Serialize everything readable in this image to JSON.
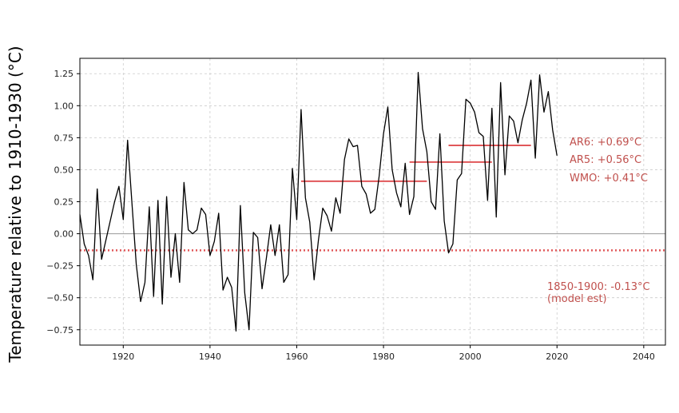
{
  "colors": {
    "series": "#000000",
    "accent": "#e15759",
    "annotation_text": "#c0504d",
    "grid": "#cccccc",
    "zero_line": "#999999"
  },
  "chart_data": {
    "type": "line",
    "title": "",
    "xlabel": "",
    "ylabel": "Temperature relative to 1910-1930 (°C)",
    "xlim": [
      1910,
      2045
    ],
    "ylim": [
      -0.87,
      1.37
    ],
    "x_ticks": [
      1920,
      1940,
      1960,
      1980,
      2000,
      2020,
      2040
    ],
    "y_ticks": [
      -0.75,
      -0.5,
      -0.25,
      0.0,
      0.25,
      0.5,
      0.75,
      1.0,
      1.25
    ],
    "x_tick_labels": [
      "1920",
      "1940",
      "1960",
      "1980",
      "2000",
      "2020",
      "2040"
    ],
    "y_tick_labels": [
      "−0.75",
      "−0.50",
      "−0.25",
      "0.00",
      "0.25",
      "0.50",
      "0.75",
      "1.00",
      "1.25"
    ],
    "grid": true,
    "series": [
      {
        "x": [
          1910,
          1911,
          1912,
          1913,
          1914,
          1915,
          1916,
          1917,
          1918,
          1919,
          1920,
          1921,
          1922,
          1923,
          1924,
          1925,
          1926,
          1927,
          1928,
          1929,
          1930,
          1931,
          1932,
          1933,
          1934,
          1935,
          1936,
          1937,
          1938,
          1939,
          1940,
          1941,
          1942,
          1943,
          1944,
          1945,
          1946,
          1947,
          1948,
          1949,
          1950,
          1951,
          1952,
          1953,
          1954,
          1955,
          1956,
          1957,
          1958,
          1959,
          1960,
          1961,
          1962,
          1963,
          1964,
          1965,
          1966,
          1967,
          1968,
          1969,
          1970,
          1971,
          1972,
          1973,
          1974,
          1975,
          1976,
          1977,
          1978,
          1979,
          1980,
          1981,
          1982,
          1983,
          1984,
          1985,
          1986,
          1987,
          1988,
          1989,
          1990,
          1991,
          1992,
          1993,
          1994,
          1995,
          1996,
          1997,
          1998,
          1999,
          2000,
          2001,
          2002,
          2003,
          2004,
          2005,
          2006,
          2007,
          2008,
          2009,
          2010,
          2011,
          2012,
          2013,
          2014,
          2015,
          2016,
          2017,
          2018,
          2019,
          2020
        ],
        "y": [
          0.15,
          -0.08,
          -0.17,
          -0.36,
          0.35,
          -0.2,
          -0.05,
          0.1,
          0.25,
          0.37,
          0.11,
          0.73,
          0.24,
          -0.24,
          -0.53,
          -0.38,
          0.21,
          -0.49,
          0.26,
          -0.55,
          0.29,
          -0.34,
          0.0,
          -0.38,
          0.4,
          0.03,
          0.0,
          0.03,
          0.2,
          0.15,
          -0.17,
          -0.06,
          0.16,
          -0.44,
          -0.34,
          -0.42,
          -0.76,
          0.22,
          -0.46,
          -0.75,
          0.01,
          -0.03,
          -0.43,
          -0.19,
          0.07,
          -0.17,
          0.07,
          -0.38,
          -0.32,
          0.51,
          0.11,
          0.97,
          0.28,
          0.09,
          -0.36,
          -0.05,
          0.2,
          0.14,
          0.02,
          0.28,
          0.16,
          0.58,
          0.74,
          0.68,
          0.69,
          0.37,
          0.31,
          0.16,
          0.19,
          0.45,
          0.78,
          0.99,
          0.5,
          0.32,
          0.21,
          0.55,
          0.15,
          0.29,
          1.26,
          0.82,
          0.64,
          0.25,
          0.19,
          0.78,
          0.1,
          -0.15,
          -0.08,
          0.42,
          0.47,
          1.05,
          1.02,
          0.95,
          0.79,
          0.76,
          0.26,
          0.98,
          0.13,
          1.18,
          0.46,
          0.92,
          0.88,
          0.71,
          0.89,
          1.02,
          1.2,
          0.59,
          1.24,
          0.95,
          1.11,
          0.81,
          0.61
        ]
      }
    ],
    "reference_lines": [
      {
        "x_start": 1961,
        "x_end": 1990,
        "y": 0.41,
        "label": "WMO: +0.41°C"
      },
      {
        "x_start": 1986,
        "x_end": 2005,
        "y": 0.56,
        "label": "AR5: +0.56°C"
      },
      {
        "x_start": 1995,
        "x_end": 2014,
        "y": 0.69,
        "label": "AR6: +0.69°C"
      }
    ],
    "baseline": {
      "y": -0.13,
      "style": "dotted",
      "label_lines": [
        "1850-1900: -0.13°C",
        "(model est)"
      ]
    }
  }
}
